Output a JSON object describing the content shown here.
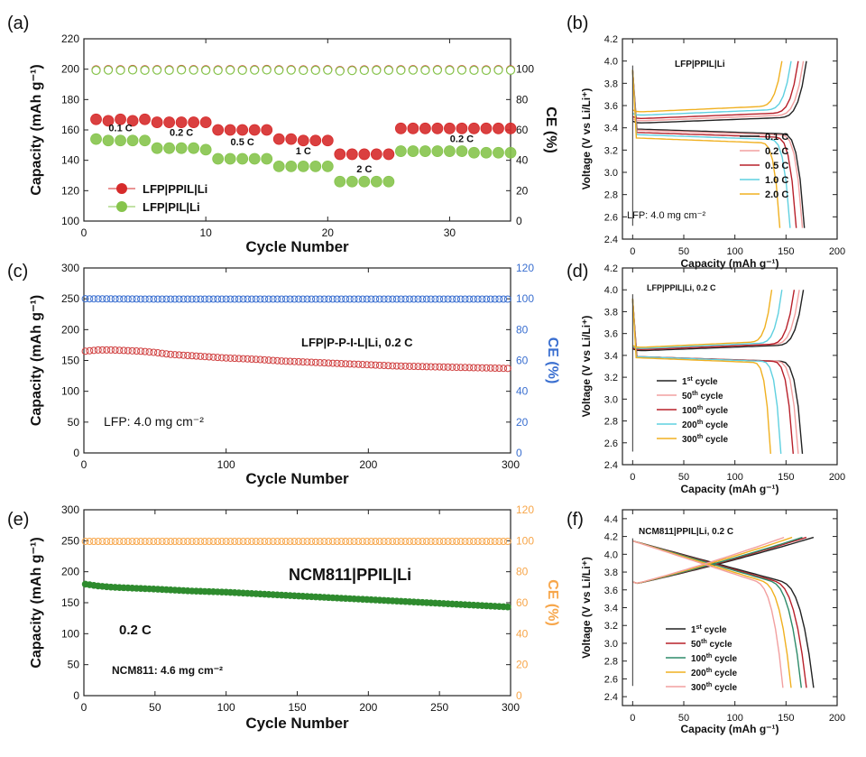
{
  "chart_data": [
    {
      "panel": "(a)",
      "type": "scatter",
      "xlabel": "Cycle Number",
      "ylabel": "Capacity (mAh g⁻¹)",
      "ylabel_right": "CE (%)",
      "xlim": [
        0,
        35
      ],
      "ylim": [
        100,
        220
      ],
      "ylim_right": [
        0,
        120
      ],
      "xticks": [
        0,
        10,
        20,
        30
      ],
      "yticks": [
        100,
        120,
        140,
        160,
        180,
        200,
        220
      ],
      "yticks_right": [
        0,
        20,
        40,
        60,
        80,
        100
      ],
      "rate_labels": [
        {
          "text": "0.1 C",
          "x": 3,
          "y": 159
        },
        {
          "text": "0.2 C",
          "x": 8,
          "y": 156
        },
        {
          "text": "0.5 C",
          "x": 13,
          "y": 150
        },
        {
          "text": "1 C",
          "x": 18,
          "y": 144
        },
        {
          "text": "2 C",
          "x": 23,
          "y": 132
        },
        {
          "text": "0.2 C",
          "x": 31,
          "y": 152
        }
      ],
      "legend": [
        "LFP|PPIL|Li",
        "LFP|PIL|Li"
      ],
      "series": [
        {
          "name": "LFP|PPIL|Li",
          "color": "#d62b2b",
          "x": [
            1,
            2,
            3,
            4,
            5,
            6,
            7,
            8,
            9,
            10,
            11,
            12,
            13,
            14,
            15,
            16,
            17,
            18,
            19,
            20,
            21,
            22,
            23,
            24,
            25,
            26,
            27,
            28,
            29,
            30,
            31,
            32,
            33,
            34,
            35
          ],
          "values": [
            167,
            166,
            167,
            166,
            167,
            165,
            165,
            165,
            165,
            165,
            160,
            160,
            160,
            160,
            160,
            154,
            154,
            153,
            153,
            153,
            144,
            144,
            144,
            144,
            144,
            161,
            161,
            161,
            161,
            161,
            161,
            161,
            161,
            161,
            161
          ]
        },
        {
          "name": "LFP|PIL|Li",
          "color": "#86c44c",
          "x": [
            1,
            2,
            3,
            4,
            5,
            6,
            7,
            8,
            9,
            10,
            11,
            12,
            13,
            14,
            15,
            16,
            17,
            18,
            19,
            20,
            21,
            22,
            23,
            24,
            25,
            26,
            27,
            28,
            29,
            30,
            31,
            32,
            33,
            34,
            35
          ],
          "values": [
            154,
            153,
            153,
            153,
            153,
            148,
            148,
            148,
            148,
            147,
            141,
            141,
            141,
            141,
            141,
            136,
            136,
            136,
            136,
            136,
            126,
            126,
            126,
            126,
            126,
            146,
            146,
            146,
            146,
            146,
            146,
            145,
            145,
            145,
            145
          ]
        },
        {
          "name": "CE LFP|PPIL|Li",
          "axis": "right",
          "color": "#d62b2b",
          "x": [
            1,
            2,
            3,
            4,
            5,
            6,
            7,
            8,
            9,
            10,
            11,
            12,
            13,
            14,
            15,
            16,
            17,
            18,
            19,
            20,
            21,
            22,
            23,
            24,
            25,
            26,
            27,
            28,
            29,
            30,
            31,
            32,
            33,
            34,
            35
          ],
          "values": [
            99.5,
            99.7,
            99.6,
            99.8,
            99.6,
            99.7,
            99.6,
            99.8,
            99.7,
            99.6,
            99.5,
            99.7,
            99.6,
            99.7,
            99.8,
            99.6,
            99.7,
            99.5,
            99.6,
            99.7,
            99.1,
            99.4,
            99.5,
            99.6,
            99.6,
            99.6,
            99.7,
            99.6,
            99.7,
            99.6,
            99.7,
            99.6,
            99.5,
            99.7,
            99.6
          ]
        },
        {
          "name": "CE LFP|PIL|Li",
          "axis": "right",
          "color": "#86c44c",
          "x": [
            1,
            2,
            3,
            4,
            5,
            6,
            7,
            8,
            9,
            10,
            11,
            12,
            13,
            14,
            15,
            16,
            17,
            18,
            19,
            20,
            21,
            22,
            23,
            24,
            25,
            26,
            27,
            28,
            29,
            30,
            31,
            32,
            33,
            34,
            35
          ],
          "values": [
            99.2,
            99.4,
            99.3,
            99.5,
            99.3,
            99.4,
            99.3,
            99.5,
            99.4,
            99.3,
            99.2,
            99.4,
            99.3,
            99.4,
            99.5,
            99.3,
            99.4,
            99.2,
            99.3,
            99.4,
            98.8,
            99.1,
            99.2,
            99.3,
            99.3,
            99.3,
            99.4,
            99.3,
            99.4,
            99.3,
            99.4,
            99.3,
            99.2,
            99.4,
            99.3
          ]
        }
      ]
    },
    {
      "panel": "(b)",
      "type": "line",
      "title": "LFP|PPIL|Li",
      "annotation": "LFP: 4.0 mg cm⁻²",
      "xlabel": "Capacity (mAh g⁻¹)",
      "ylabel": "Voltage (V vs Li/Li⁺)",
      "xlim": [
        -10,
        200
      ],
      "ylim": [
        2.4,
        4.2
      ],
      "xticks": [
        0,
        50,
        100,
        150,
        200
      ],
      "yticks": [
        2.4,
        2.6,
        2.8,
        3.0,
        3.2,
        3.4,
        3.6,
        3.8,
        4.0,
        4.2
      ],
      "legend": [
        "0.1 C",
        "0.2 C",
        "0.5 C",
        "1.0 C",
        "2.0 C"
      ],
      "series": [
        {
          "name": "0.1 C",
          "color": "#222222",
          "charge_capacity": 170,
          "discharge_capacity": 168,
          "charge_plateau": 3.44,
          "discharge_plateau": 3.39
        },
        {
          "name": "0.2 C",
          "color": "#f2a0a0",
          "charge_capacity": 167,
          "discharge_capacity": 166,
          "charge_plateau": 3.46,
          "discharge_plateau": 3.38
        },
        {
          "name": "0.5 C",
          "color": "#b8202a",
          "charge_capacity": 162,
          "discharge_capacity": 160,
          "charge_plateau": 3.48,
          "discharge_plateau": 3.36
        },
        {
          "name": "1.0 C",
          "color": "#5fd0e0",
          "charge_capacity": 155,
          "discharge_capacity": 154,
          "charge_plateau": 3.51,
          "discharge_plateau": 3.34
        },
        {
          "name": "2.0 C",
          "color": "#f0b020",
          "charge_capacity": 146,
          "discharge_capacity": 144,
          "charge_plateau": 3.54,
          "discharge_plateau": 3.31
        }
      ]
    },
    {
      "panel": "(c)",
      "type": "scatter",
      "annotation_main": "LFP|P-P-I-L|Li, 0.2 C",
      "annotation": "LFP: 4.0 mg cm⁻²",
      "xlabel": "Cycle Number",
      "ylabel": "Capacity (mAh g⁻¹)",
      "ylabel_right": "CE (%)",
      "xlim": [
        0,
        300
      ],
      "ylim": [
        0,
        300
      ],
      "ylim_right": [
        0,
        120
      ],
      "xticks": [
        0,
        100,
        200,
        300
      ],
      "yticks": [
        0,
        50,
        100,
        150,
        200,
        250,
        300
      ],
      "yticks_right": [
        0,
        20,
        40,
        60,
        80,
        100,
        120
      ],
      "series": [
        {
          "name": "Capacity",
          "color": "#d04040",
          "x": [
            1,
            10,
            20,
            30,
            40,
            50,
            60,
            80,
            100,
            120,
            140,
            160,
            180,
            200,
            220,
            240,
            260,
            280,
            300
          ],
          "values": [
            165,
            167,
            167,
            166,
            165,
            163,
            160,
            157,
            154,
            152,
            149,
            147,
            145,
            143,
            141,
            140,
            139,
            138,
            137
          ]
        },
        {
          "name": "CE",
          "axis": "right",
          "color": "#3a6fd0",
          "x": [
            1,
            50,
            100,
            150,
            200,
            250,
            300
          ],
          "values": [
            100,
            99.8,
            99.8,
            99.8,
            99.8,
            99.8,
            99.8
          ]
        }
      ]
    },
    {
      "panel": "(d)",
      "type": "line",
      "title": "LFP|PPIL|Li, 0.2 C",
      "xlabel": "Capacity (mAh g⁻¹)",
      "ylabel": "Voltage (V vs Li/Li⁺)",
      "xlim": [
        -10,
        200
      ],
      "ylim": [
        2.4,
        4.2
      ],
      "xticks": [
        0,
        50,
        100,
        150,
        200
      ],
      "yticks": [
        2.4,
        2.6,
        2.8,
        3.0,
        3.2,
        3.4,
        3.6,
        3.8,
        4.0,
        4.2
      ],
      "legend": [
        "1st cycle",
        "50th cycle",
        "100th cycle",
        "200th cycle",
        "300th cycle"
      ],
      "series": [
        {
          "name": "1st cycle",
          "color": "#222222",
          "charge_capacity": 167,
          "discharge_capacity": 166,
          "charge_plateau": 3.44,
          "discharge_plateau": 3.39
        },
        {
          "name": "50th cycle",
          "color": "#f2a0a0",
          "charge_capacity": 163,
          "discharge_capacity": 162,
          "charge_plateau": 3.45,
          "discharge_plateau": 3.39
        },
        {
          "name": "100th cycle",
          "color": "#b8202a",
          "charge_capacity": 158,
          "discharge_capacity": 157,
          "charge_plateau": 3.45,
          "discharge_plateau": 3.39
        },
        {
          "name": "200th cycle",
          "color": "#5fd0e0",
          "charge_capacity": 146,
          "discharge_capacity": 145,
          "charge_plateau": 3.46,
          "discharge_plateau": 3.39
        },
        {
          "name": "300th cycle",
          "color": "#f0b020",
          "charge_capacity": 136,
          "discharge_capacity": 135,
          "charge_plateau": 3.47,
          "discharge_plateau": 3.38
        }
      ]
    },
    {
      "panel": "(e)",
      "type": "scatter",
      "annotation_main": "NCM811|PPIL|Li",
      "rate_label": "0.2 C",
      "annotation": "NCM811: 4.6 mg cm⁻²",
      "xlabel": "Cycle Number",
      "ylabel": "Capacity (mAh g⁻¹)",
      "ylabel_right": "CE (%)",
      "xlim": [
        0,
        300
      ],
      "ylim": [
        0,
        300
      ],
      "ylim_right": [
        0,
        120
      ],
      "xticks": [
        0,
        50,
        100,
        150,
        200,
        250,
        300
      ],
      "yticks": [
        0,
        50,
        100,
        150,
        200,
        250,
        300
      ],
      "yticks_right": [
        0,
        20,
        40,
        60,
        80,
        100,
        120
      ],
      "series": [
        {
          "name": "Capacity",
          "color": "#2e8b2e",
          "x": [
            1,
            10,
            20,
            30,
            40,
            50,
            75,
            100,
            125,
            150,
            175,
            200,
            225,
            250,
            275,
            300
          ],
          "values": [
            180,
            177,
            175,
            174,
            173,
            172,
            169,
            167,
            164,
            161,
            158,
            155,
            152,
            149,
            146,
            143
          ]
        },
        {
          "name": "CE",
          "axis": "right",
          "color": "#f7a64a",
          "x": [
            1,
            50,
            100,
            150,
            200,
            250,
            300
          ],
          "values": [
            99.6,
            99.6,
            99.6,
            99.6,
            99.6,
            99.6,
            99.6
          ]
        }
      ]
    },
    {
      "panel": "(f)",
      "type": "line",
      "title": "NCM811|PPIL|Li, 0.2 C",
      "xlabel": "Capacity (mAh g⁻¹)",
      "ylabel": "Voltage (V vs Li/Li⁺)",
      "xlim": [
        -10,
        200
      ],
      "ylim": [
        2.3,
        4.5
      ],
      "xticks": [
        0,
        50,
        100,
        150,
        200
      ],
      "yticks": [
        2.4,
        2.6,
        2.8,
        3.0,
        3.2,
        3.4,
        3.6,
        3.8,
        4.0,
        4.2,
        4.4
      ],
      "legend": [
        "1st cycle",
        "50th cycle",
        "100th cycle",
        "200th cycle",
        "300th cycle"
      ],
      "series": [
        {
          "name": "1st cycle",
          "color": "#222222",
          "charge_capacity": 177,
          "discharge_capacity": 177
        },
        {
          "name": "50th cycle",
          "color": "#b8202a",
          "charge_capacity": 170,
          "discharge_capacity": 170
        },
        {
          "name": "100th cycle",
          "color": "#2e8b6a",
          "charge_capacity": 166,
          "discharge_capacity": 165
        },
        {
          "name": "200th cycle",
          "color": "#f0b020",
          "charge_capacity": 156,
          "discharge_capacity": 155
        },
        {
          "name": "300th cycle",
          "color": "#f2a0a0",
          "charge_capacity": 148,
          "discharge_capacity": 147
        }
      ]
    }
  ]
}
